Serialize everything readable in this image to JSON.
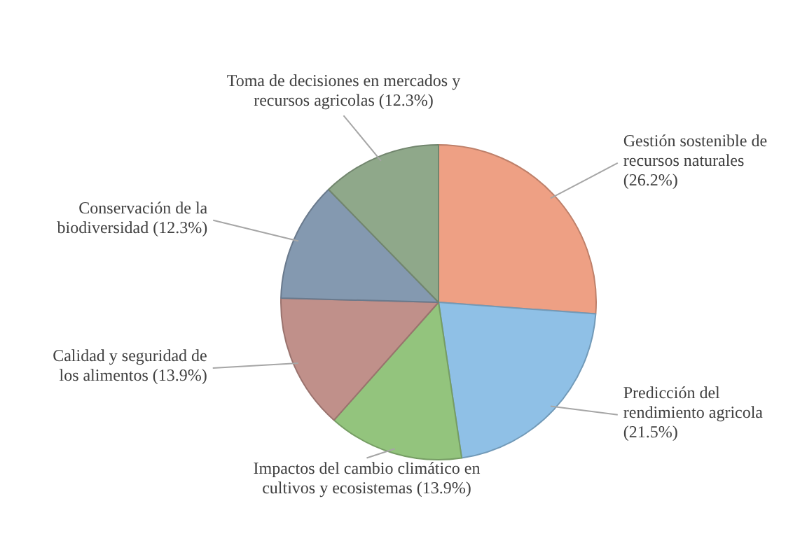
{
  "chart_data": {
    "type": "pie",
    "categories": [
      "Gestión sostenible de recursos naturales",
      "Predicción del rendimiento agricola",
      "Impactos del cambio climático en cultivos y ecosistemas",
      "Calidad y seguridad de los alimentos",
      "Conservación de la biodiversidad",
      "Toma de decisiones en mercados y recursos agricolas"
    ],
    "values": [
      26.2,
      21.5,
      13.9,
      13.9,
      12.3,
      12.3
    ],
    "value_labels": [
      "(26.2%)",
      "(21.5%)",
      "(13.9%)",
      "(13.9%)",
      "(12.3%)",
      "(12.3%)"
    ],
    "colors": [
      "#eea084",
      "#8fc0e6",
      "#93c47d",
      "#c0908a",
      "#8499b0",
      "#8fa88a"
    ],
    "legend": false
  }
}
